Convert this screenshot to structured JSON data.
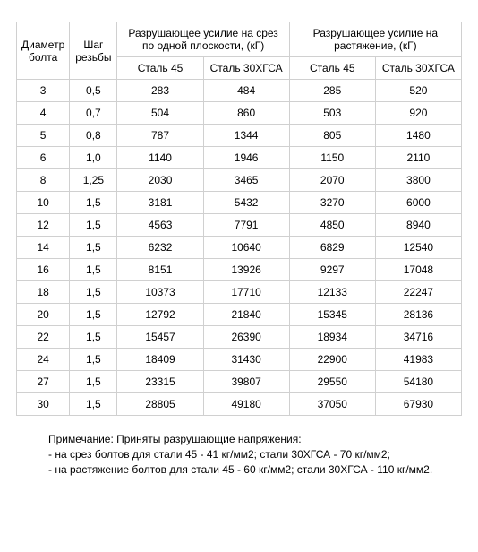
{
  "table": {
    "headers": {
      "diameter": "Диаметр болта",
      "pitch": "Шаг резьбы",
      "shear_group": "Разрушающее усилие на срез по одной плоскости, (кГ)",
      "tension_group": "Разрушающее усилие на растяжение, (кГ)",
      "steel45": "Сталь 45",
      "steel30": "Сталь 30ХГСА",
      "steel30_b": "Сталь 30ХГСА"
    },
    "rows": [
      {
        "d": "3",
        "p": "0,5",
        "s45": "283",
        "s30": "484",
        "t45": "285",
        "t30": "520"
      },
      {
        "d": "4",
        "p": "0,7",
        "s45": "504",
        "s30": "860",
        "t45": "503",
        "t30": "920"
      },
      {
        "d": "5",
        "p": "0,8",
        "s45": "787",
        "s30": "1344",
        "t45": "805",
        "t30": "1480"
      },
      {
        "d": "6",
        "p": "1,0",
        "s45": "1140",
        "s30": "1946",
        "t45": "1150",
        "t30": "2110"
      },
      {
        "d": "8",
        "p": "1,25",
        "s45": "2030",
        "s30": "3465",
        "t45": "2070",
        "t30": "3800"
      },
      {
        "d": "10",
        "p": "1,5",
        "s45": "3181",
        "s30": "5432",
        "t45": "3270",
        "t30": "6000"
      },
      {
        "d": "12",
        "p": "1,5",
        "s45": "4563",
        "s30": "7791",
        "t45": "4850",
        "t30": "8940"
      },
      {
        "d": "14",
        "p": "1,5",
        "s45": "6232",
        "s30": "10640",
        "t45": "6829",
        "t30": "12540"
      },
      {
        "d": "16",
        "p": "1,5",
        "s45": "8151",
        "s30": "13926",
        "t45": "9297",
        "t30": "17048"
      },
      {
        "d": "18",
        "p": "1,5",
        "s45": "10373",
        "s30": "17710",
        "t45": "12133",
        "t30": "22247"
      },
      {
        "d": "20",
        "p": "1,5",
        "s45": "12792",
        "s30": "21840",
        "t45": "15345",
        "t30": "28136"
      },
      {
        "d": "22",
        "p": "1,5",
        "s45": "15457",
        "s30": "26390",
        "t45": "18934",
        "t30": "34716"
      },
      {
        "d": "24",
        "p": "1,5",
        "s45": "18409",
        "s30": "31430",
        "t45": "22900",
        "t30": "41983"
      },
      {
        "d": "27",
        "p": "1,5",
        "s45": "23315",
        "s30": "39807",
        "t45": "29550",
        "t30": "54180"
      },
      {
        "d": "30",
        "p": "1,5",
        "s45": "28805",
        "s30": "49180",
        "t45": "37050",
        "t30": "67930"
      }
    ]
  },
  "notes": {
    "line1": "Примечание: Приняты разрушающие напряжения:",
    "line2": "- на срез болтов для стали 45 - 41 кг/мм2; стали 30ХГСА - 70 кг/мм2;",
    "line3": "- на растяжение болтов для стали 45 - 60 кг/мм2; стали 30ХГСА - 110 кг/мм2."
  },
  "styling": {
    "border_color": "#d0d0d0",
    "text_color": "#000000",
    "background_color": "#ffffff",
    "font_size_pt": 12,
    "font_family": "Arial"
  }
}
